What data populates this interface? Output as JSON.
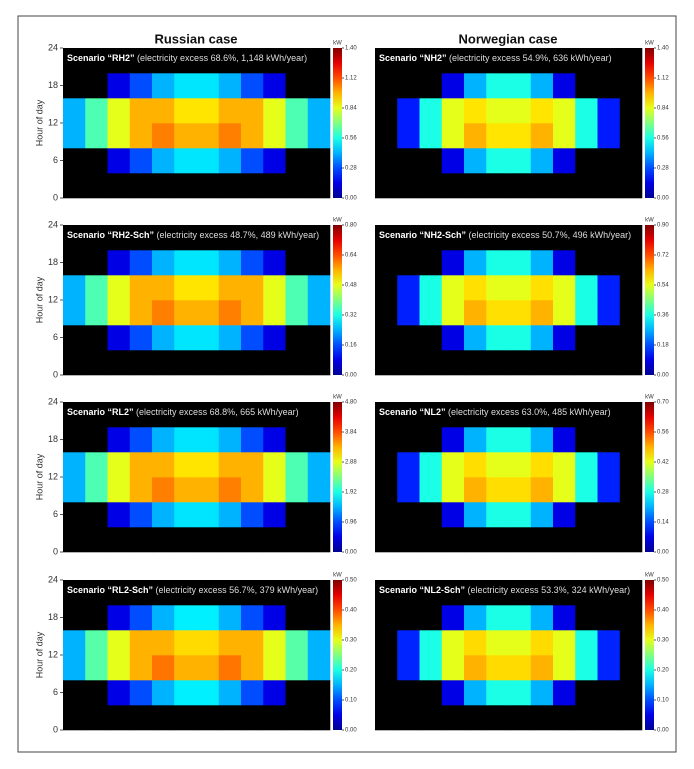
{
  "column_titles": [
    "Russian case",
    "Norwegian case"
  ],
  "chart_data": [
    {
      "type": "heatmap",
      "annotation_bold": "Scenario “RH2”",
      "annotation": "(electricity excess 68.6%, 1,148 kWh/year)",
      "ylabel": "Hour of day",
      "ylim": [
        0,
        24
      ],
      "yticks": [
        0,
        6,
        12,
        18,
        24
      ],
      "colorbar_label": "kW",
      "clim": [
        0,
        1.4
      ],
      "cticks": [
        {
          "value": 0,
          "label": "0.00"
        },
        0.28,
        0.56,
        0.84,
        1.12,
        {
          "value": 1.4,
          "label": "1.40"
        }
      ],
      "z": [
        [
          0,
          0,
          0,
          0,
          0,
          0,
          0,
          0,
          0,
          0,
          0,
          0
        ],
        [
          0,
          0,
          0.14,
          0.28,
          0.42,
          0.49,
          0.49,
          0.42,
          0.28,
          0.14,
          0,
          0
        ],
        [
          0.42,
          0.63,
          0.84,
          0.98,
          1.05,
          0.98,
          0.98,
          1.05,
          0.98,
          0.84,
          0.63,
          0.42
        ],
        [
          0.42,
          0.63,
          0.84,
          0.98,
          0.98,
          0.91,
          0.91,
          0.98,
          0.98,
          0.84,
          0.63,
          0.42
        ],
        [
          0,
          0,
          0.14,
          0.28,
          0.42,
          0.49,
          0.49,
          0.42,
          0.28,
          0.14,
          0,
          0
        ],
        [
          0,
          0,
          0,
          0,
          0,
          0,
          0,
          0,
          0,
          0,
          0,
          0
        ]
      ]
    },
    {
      "type": "heatmap",
      "annotation_bold": "Scenario “NH2”",
      "annotation": "(electricity excess 54.9%, 636 kWh/year)",
      "colorbar_label": "kW",
      "clim": [
        0,
        1.4
      ],
      "cticks": [
        {
          "value": 0,
          "label": "0.00"
        },
        0.28,
        0.56,
        0.84,
        1.12,
        {
          "value": 1.4,
          "label": "1.40"
        }
      ],
      "z": [
        [
          0,
          0,
          0,
          0,
          0,
          0,
          0,
          0,
          0,
          0,
          0,
          0
        ],
        [
          0,
          0,
          0,
          0.14,
          0.42,
          0.56,
          0.56,
          0.42,
          0.14,
          0,
          0,
          0
        ],
        [
          0,
          0.21,
          0.56,
          0.84,
          0.98,
          0.91,
          0.91,
          0.98,
          0.84,
          0.56,
          0.21,
          0
        ],
        [
          0,
          0.21,
          0.56,
          0.84,
          0.91,
          0.84,
          0.84,
          0.91,
          0.84,
          0.56,
          0.21,
          0
        ],
        [
          0,
          0,
          0,
          0.14,
          0.42,
          0.56,
          0.56,
          0.42,
          0.14,
          0,
          0,
          0
        ],
        [
          0,
          0,
          0,
          0,
          0,
          0,
          0,
          0,
          0,
          0,
          0,
          0
        ]
      ]
    },
    {
      "type": "heatmap",
      "annotation_bold": "Scenario “RH2-Sch”",
      "annotation": "(electricity excess 48.7%, 489 kWh/year)",
      "ylabel": "Hour of day",
      "ylim": [
        0,
        24
      ],
      "yticks": [
        0,
        6,
        12,
        18,
        24
      ],
      "colorbar_label": "kW",
      "clim": [
        0,
        0.8
      ],
      "cticks": [
        {
          "value": 0,
          "label": "0.00"
        },
        0.16,
        0.32,
        0.48,
        0.64,
        {
          "value": 0.8,
          "label": "0.80"
        }
      ],
      "z": [
        [
          0,
          0,
          0,
          0,
          0,
          0,
          0,
          0,
          0,
          0,
          0,
          0
        ],
        [
          0,
          0,
          0.08,
          0.16,
          0.24,
          0.28,
          0.28,
          0.24,
          0.16,
          0.08,
          0,
          0
        ],
        [
          0.24,
          0.36,
          0.48,
          0.56,
          0.6,
          0.56,
          0.56,
          0.6,
          0.56,
          0.48,
          0.36,
          0.24
        ],
        [
          0.24,
          0.36,
          0.48,
          0.56,
          0.56,
          0.52,
          0.52,
          0.56,
          0.56,
          0.48,
          0.36,
          0.24
        ],
        [
          0,
          0,
          0.08,
          0.16,
          0.24,
          0.28,
          0.28,
          0.24,
          0.16,
          0.08,
          0,
          0
        ],
        [
          0,
          0,
          0,
          0,
          0,
          0,
          0,
          0,
          0,
          0,
          0,
          0
        ]
      ]
    },
    {
      "type": "heatmap",
      "annotation_bold": "Scenario “NH2-Sch”",
      "annotation": "(electricity excess 50.7%, 496 kWh/year)",
      "colorbar_label": "kW",
      "clim": [
        0,
        0.9
      ],
      "cticks": [
        {
          "value": 0,
          "label": "0.00"
        },
        0.18,
        0.36,
        0.54,
        0.72,
        {
          "value": 0.9,
          "label": "0.90"
        }
      ],
      "z": [
        [
          0,
          0,
          0,
          0,
          0,
          0,
          0,
          0,
          0,
          0,
          0,
          0
        ],
        [
          0,
          0,
          0,
          0.09,
          0.27,
          0.36,
          0.36,
          0.27,
          0.09,
          0,
          0,
          0
        ],
        [
          0,
          0.14,
          0.36,
          0.54,
          0.63,
          0.59,
          0.59,
          0.63,
          0.54,
          0.36,
          0.14,
          0
        ],
        [
          0,
          0.14,
          0.36,
          0.54,
          0.59,
          0.54,
          0.54,
          0.59,
          0.54,
          0.36,
          0.14,
          0
        ],
        [
          0,
          0,
          0,
          0.09,
          0.27,
          0.36,
          0.36,
          0.27,
          0.09,
          0,
          0,
          0
        ],
        [
          0,
          0,
          0,
          0,
          0,
          0,
          0,
          0,
          0,
          0,
          0,
          0
        ]
      ]
    },
    {
      "type": "heatmap",
      "annotation_bold": "Scenario “RL2”",
      "annotation": "(electricity excess 68.8%, 665 kWh/year)",
      "ylabel": "Hour of day",
      "ylim": [
        0,
        24
      ],
      "yticks": [
        0,
        6,
        12,
        18,
        24
      ],
      "colorbar_label": "kW",
      "clim": [
        0,
        4.8
      ],
      "cticks": [
        {
          "value": 0,
          "label": "0.00"
        },
        0.96,
        1.92,
        2.88,
        3.84,
        {
          "value": 4.8,
          "label": "4.80"
        }
      ],
      "z": [
        [
          0,
          0,
          0,
          0,
          0,
          0,
          0,
          0,
          0,
          0,
          0,
          0
        ],
        [
          0,
          0,
          0.48,
          0.96,
          1.44,
          1.68,
          1.68,
          1.44,
          0.96,
          0.48,
          0,
          0
        ],
        [
          1.44,
          2.16,
          2.88,
          3.36,
          3.6,
          3.36,
          3.36,
          3.6,
          3.36,
          2.88,
          2.16,
          1.44
        ],
        [
          1.44,
          2.16,
          2.88,
          3.36,
          3.36,
          3.12,
          3.12,
          3.36,
          3.36,
          2.88,
          2.16,
          1.44
        ],
        [
          0,
          0,
          0.48,
          0.96,
          1.44,
          1.68,
          1.68,
          1.44,
          0.96,
          0.48,
          0,
          0
        ],
        [
          0,
          0,
          0,
          0,
          0,
          0,
          0,
          0,
          0,
          0,
          0,
          0
        ]
      ]
    },
    {
      "type": "heatmap",
      "annotation_bold": "Scenario “NL2”",
      "annotation": "(electricity excess 63.0%, 485 kWh/year)",
      "colorbar_label": "kW",
      "clim": [
        0,
        0.7
      ],
      "cticks": [
        {
          "value": 0,
          "label": "0.00"
        },
        0.14,
        0.28,
        0.42,
        0.56,
        {
          "value": 0.7,
          "label": "0.70"
        }
      ],
      "z": [
        [
          0,
          0,
          0,
          0,
          0,
          0,
          0,
          0,
          0,
          0,
          0,
          0
        ],
        [
          0,
          0,
          0,
          0.07,
          0.21,
          0.28,
          0.28,
          0.21,
          0.07,
          0,
          0,
          0
        ],
        [
          0,
          0.11,
          0.28,
          0.42,
          0.49,
          0.46,
          0.46,
          0.49,
          0.42,
          0.28,
          0.11,
          0
        ],
        [
          0,
          0.11,
          0.28,
          0.42,
          0.46,
          0.42,
          0.42,
          0.46,
          0.42,
          0.28,
          0.11,
          0
        ],
        [
          0,
          0,
          0,
          0.07,
          0.21,
          0.28,
          0.28,
          0.21,
          0.07,
          0,
          0,
          0
        ],
        [
          0,
          0,
          0,
          0,
          0,
          0,
          0,
          0,
          0,
          0,
          0,
          0
        ]
      ]
    },
    {
      "type": "heatmap",
      "annotation_bold": "Scenario “RL2-Sch”",
      "annotation": "(electricity excess 56.7%, 379 kWh/year)",
      "ylabel": "Hour of day",
      "ylim": [
        0,
        24
      ],
      "yticks": [
        0,
        6,
        12,
        18,
        24
      ],
      "colorbar_label": "kW",
      "clim": [
        0,
        0.5
      ],
      "cticks": [
        {
          "value": 0,
          "label": "0.00"
        },
        {
          "value": 0.1,
          "label": "0.10"
        },
        {
          "value": 0.2,
          "label": "0.20"
        },
        {
          "value": 0.3,
          "label": "0.30"
        },
        {
          "value": 0.4,
          "label": "0.40"
        },
        {
          "value": 0.5,
          "label": "0.50"
        }
      ],
      "z": [
        [
          0,
          0,
          0,
          0,
          0,
          0,
          0,
          0,
          0,
          0,
          0,
          0
        ],
        [
          0,
          0,
          0.05,
          0.1,
          0.15,
          0.18,
          0.18,
          0.15,
          0.1,
          0.05,
          0,
          0
        ],
        [
          0.15,
          0.23,
          0.3,
          0.35,
          0.38,
          0.35,
          0.35,
          0.38,
          0.35,
          0.3,
          0.23,
          0.15
        ],
        [
          0.15,
          0.23,
          0.3,
          0.35,
          0.35,
          0.33,
          0.33,
          0.35,
          0.35,
          0.3,
          0.23,
          0.15
        ],
        [
          0,
          0,
          0.05,
          0.1,
          0.15,
          0.18,
          0.18,
          0.15,
          0.1,
          0.05,
          0,
          0
        ],
        [
          0,
          0,
          0,
          0,
          0,
          0,
          0,
          0,
          0,
          0,
          0,
          0
        ]
      ]
    },
    {
      "type": "heatmap",
      "annotation_bold": "Scenario “NL2-Sch”",
      "annotation": "(electricity excess 53.3%, 324 kWh/year)",
      "colorbar_label": "kW",
      "clim": [
        0,
        0.5
      ],
      "cticks": [
        {
          "value": 0,
          "label": "0.00"
        },
        {
          "value": 0.1,
          "label": "0.10"
        },
        {
          "value": 0.2,
          "label": "0.20"
        },
        {
          "value": 0.3,
          "label": "0.30"
        },
        {
          "value": 0.4,
          "label": "0.40"
        },
        {
          "value": 0.5,
          "label": "0.50"
        }
      ],
      "z": [
        [
          0,
          0,
          0,
          0,
          0,
          0,
          0,
          0,
          0,
          0,
          0,
          0
        ],
        [
          0,
          0,
          0,
          0.05,
          0.15,
          0.2,
          0.2,
          0.15,
          0.05,
          0,
          0,
          0
        ],
        [
          0,
          0.08,
          0.2,
          0.3,
          0.35,
          0.33,
          0.33,
          0.35,
          0.3,
          0.2,
          0.08,
          0
        ],
        [
          0,
          0.08,
          0.2,
          0.3,
          0.33,
          0.3,
          0.3,
          0.33,
          0.3,
          0.2,
          0.08,
          0
        ],
        [
          0,
          0,
          0,
          0.05,
          0.15,
          0.2,
          0.2,
          0.15,
          0.05,
          0,
          0,
          0
        ],
        [
          0,
          0,
          0,
          0,
          0,
          0,
          0,
          0,
          0,
          0,
          0,
          0
        ]
      ]
    }
  ]
}
